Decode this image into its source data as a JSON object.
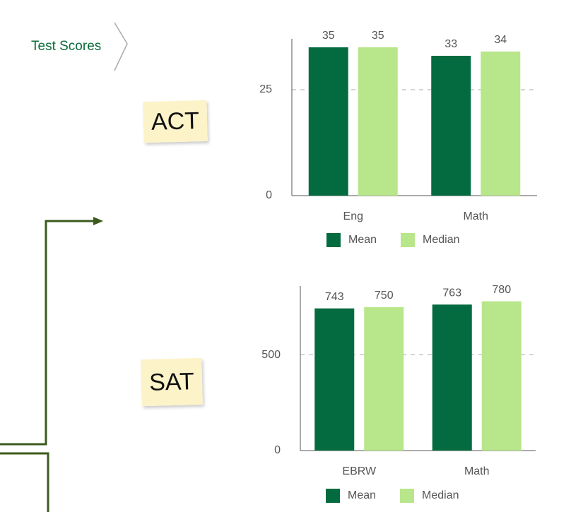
{
  "breadcrumb": "Test Scores",
  "chart_data": [
    {
      "type": "bar",
      "title": "ACT",
      "categories": [
        "Eng",
        "Math"
      ],
      "series": [
        {
          "name": "Mean",
          "color": "#036b3f",
          "values": [
            35,
            33
          ]
        },
        {
          "name": "Median",
          "color": "#b8e68a",
          "values": [
            35,
            34
          ]
        }
      ],
      "ylim": [
        0,
        37
      ],
      "yticks": [
        0,
        25
      ],
      "grid": true
    },
    {
      "type": "bar",
      "title": "SAT",
      "categories": [
        "EBRW",
        "Math"
      ],
      "series": [
        {
          "name": "Mean",
          "color": "#036b3f",
          "values": [
            743,
            763
          ]
        },
        {
          "name": "Median",
          "color": "#b8e68a",
          "values": [
            750,
            780
          ]
        }
      ],
      "ylim": [
        0,
        860
      ],
      "yticks": [
        0,
        500
      ],
      "grid": true
    }
  ]
}
